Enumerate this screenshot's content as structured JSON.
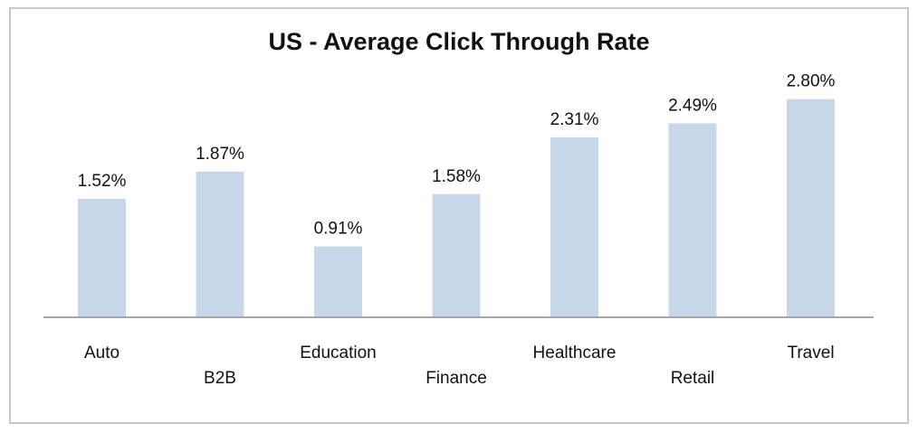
{
  "chart_data": {
    "type": "bar",
    "title": "US - Average Click Through Rate",
    "xlabel": "",
    "ylabel": "",
    "categories": [
      "Auto",
      "B2B",
      "Education",
      "Finance",
      "Healthcare",
      "Retail",
      "Travel"
    ],
    "values": [
      1.52,
      1.87,
      0.91,
      1.58,
      2.31,
      2.49,
      2.8
    ],
    "data_labels": [
      "1.52%",
      "1.87%",
      "0.91%",
      "1.58%",
      "2.31%",
      "2.49%",
      "2.80%"
    ],
    "ylim": [
      0,
      3.0
    ],
    "grid": false,
    "legend": "none",
    "colors": {
      "bar": "#c7d7e9",
      "axis": "#a6a6a6",
      "text": "#111111",
      "border": "#c9c9c9"
    }
  }
}
